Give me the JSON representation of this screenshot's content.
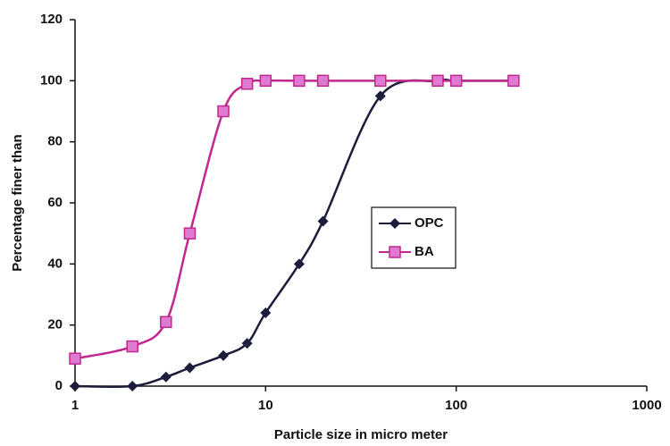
{
  "chart_data": {
    "type": "line",
    "xlabel": "Particle size in micro meter",
    "ylabel": "Percentage finer than",
    "x": [
      1,
      2,
      3,
      4,
      6,
      8,
      10,
      15,
      20,
      40,
      80,
      100,
      200
    ],
    "series": [
      {
        "name": "OPC",
        "color": "#1c1c3c",
        "marker": "diamond",
        "values": [
          0,
          0,
          3,
          6,
          10,
          14,
          24,
          40,
          54,
          95,
          100,
          100,
          100
        ]
      },
      {
        "name": "BA",
        "color": "#c0288f",
        "marker": "square",
        "values": [
          9,
          13,
          21,
          50,
          90,
          99,
          100,
          100,
          100,
          100,
          100,
          100,
          100
        ]
      }
    ],
    "xscale": "log",
    "xlim": [
      1,
      1000
    ],
    "xticks": [
      1,
      10,
      100,
      1000
    ],
    "ylim": [
      0,
      120
    ],
    "yticks": [
      0,
      20,
      40,
      60,
      80,
      100,
      120
    ],
    "grid": false,
    "legend": "center-right"
  }
}
